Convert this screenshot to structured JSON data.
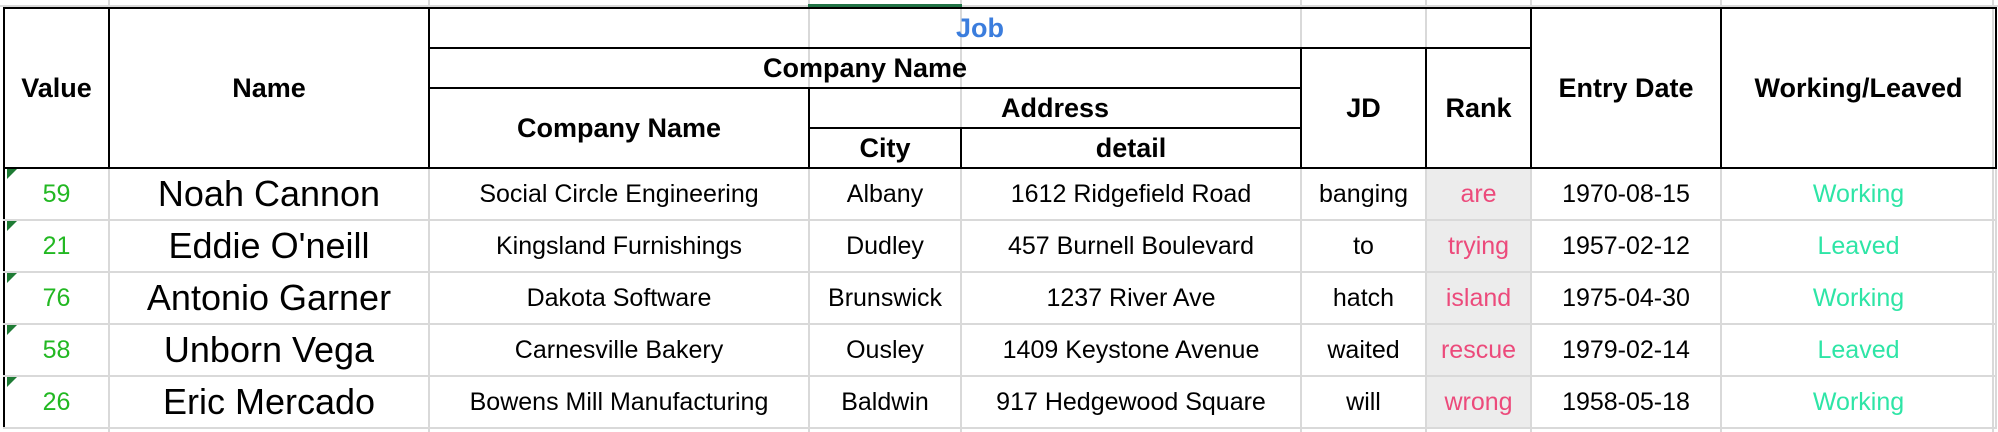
{
  "header": {
    "value": "Value",
    "name": "Name",
    "job": "Job",
    "company_name_group": "Company Name",
    "company_name": "Company Name",
    "address": "Address",
    "city": "City",
    "detail": "detail",
    "jd": "JD",
    "rank": "Rank",
    "entry_date": "Entry Date",
    "working": "Working/Leaved"
  },
  "rows": [
    {
      "value": "59",
      "name": "Noah Cannon",
      "company": "Social Circle Engineering",
      "city": "Albany",
      "detail": "1612 Ridgefield Road",
      "jd": "banging",
      "rank": "are",
      "date": "1970-08-15",
      "status": "Working"
    },
    {
      "value": "21",
      "name": "Eddie O'neill",
      "company": "Kingsland Furnishings",
      "city": "Dudley",
      "detail": "457 Burnell Boulevard",
      "jd": "to",
      "rank": "trying",
      "date": "1957-02-12",
      "status": "Leaved"
    },
    {
      "value": "76",
      "name": "Antonio Garner",
      "company": "Dakota Software",
      "city": "Brunswick",
      "detail": "1237 River Ave",
      "jd": "hatch",
      "rank": "island",
      "date": "1975-04-30",
      "status": "Working"
    },
    {
      "value": "58",
      "name": "Unborn Vega",
      "company": "Carnesville Bakery",
      "city": "Ousley",
      "detail": "1409 Keystone Avenue",
      "jd": "waited",
      "rank": "rescue",
      "date": "1979-02-14",
      "status": "Leaved"
    },
    {
      "value": "26",
      "name": "Eric Mercado",
      "company": "Bowens Mill Manufacturing",
      "city": "Baldwin",
      "detail": "917 Hedgewood Square",
      "jd": "will",
      "rank": "wrong",
      "date": "1958-05-18",
      "status": "Working"
    }
  ],
  "colors": {
    "header_link": "#3b7ddd",
    "value_green": "#22b822",
    "rank_pink": "#ec4a7b",
    "status_teal": "#2ee5a6",
    "active_cell": "#217346"
  }
}
